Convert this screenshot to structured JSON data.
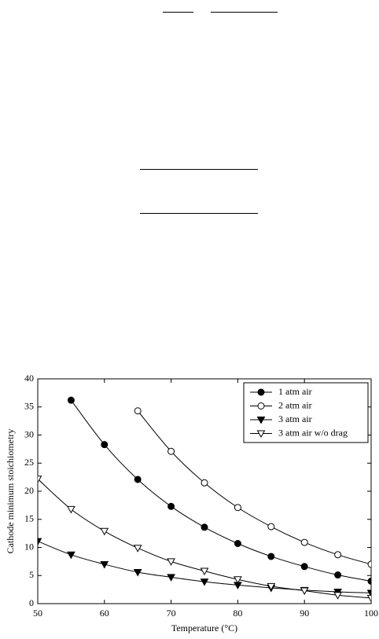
{
  "chart_data": {
    "type": "line",
    "xlabel": "Temperature (°C)",
    "ylabel": "Cathode minimum stoichiometry",
    "xlim": [
      50,
      100
    ],
    "xticks": [
      50,
      60,
      70,
      80,
      90,
      100
    ],
    "ylim": [
      0,
      40
    ],
    "yticks": [
      0,
      5,
      10,
      15,
      20,
      25,
      30,
      35,
      40
    ],
    "legend": "upper right",
    "series": [
      {
        "name": "1 atm air",
        "color": "#000000",
        "marker": "circle",
        "filled": true,
        "x": [
          55,
          60,
          65,
          70,
          75,
          80,
          85,
          90,
          95,
          100
        ],
        "values": [
          36.2,
          28.3,
          22.1,
          17.3,
          13.6,
          10.7,
          8.4,
          6.6,
          5.1,
          4.0
        ]
      },
      {
        "name": "2 atm air",
        "color": "#000000",
        "marker": "circle",
        "filled": false,
        "x": [
          65,
          70,
          75,
          80,
          85,
          90,
          95,
          100
        ],
        "values": [
          34.3,
          27.1,
          21.5,
          17.1,
          13.7,
          10.9,
          8.7,
          7.0
        ]
      },
      {
        "name": "3 atm air",
        "color": "#000000",
        "marker": "triangle-down",
        "filled": true,
        "x": [
          50,
          55,
          60,
          65,
          70,
          75,
          80,
          85,
          90,
          95,
          100
        ],
        "values": [
          11.1,
          8.7,
          7.0,
          5.6,
          4.7,
          3.9,
          3.3,
          2.8,
          2.4,
          2.1,
          1.9
        ]
      },
      {
        "name": "3 atm air w/o drag",
        "color": "#000000",
        "marker": "triangle-down",
        "filled": false,
        "x": [
          50,
          55,
          60,
          65,
          70,
          75,
          80,
          85,
          90,
          95,
          100
        ],
        "values": [
          22.2,
          16.8,
          12.9,
          9.9,
          7.5,
          5.8,
          4.3,
          3.1,
          2.3,
          1.5,
          1.0
        ]
      }
    ]
  }
}
